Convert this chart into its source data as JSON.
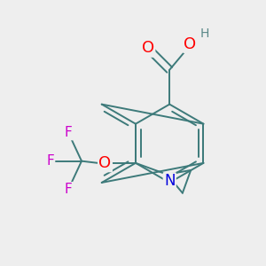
{
  "bg_color": "#eeeeee",
  "bond_color": "#3d7a7a",
  "bond_width": 1.4,
  "atom_colors": {
    "O": "#ff0000",
    "N": "#0000dd",
    "F": "#cc00cc",
    "H": "#5a8888",
    "C": "#3d7a7a"
  },
  "bl": 0.3,
  "cpx": 0.18,
  "cpy": -0.08
}
